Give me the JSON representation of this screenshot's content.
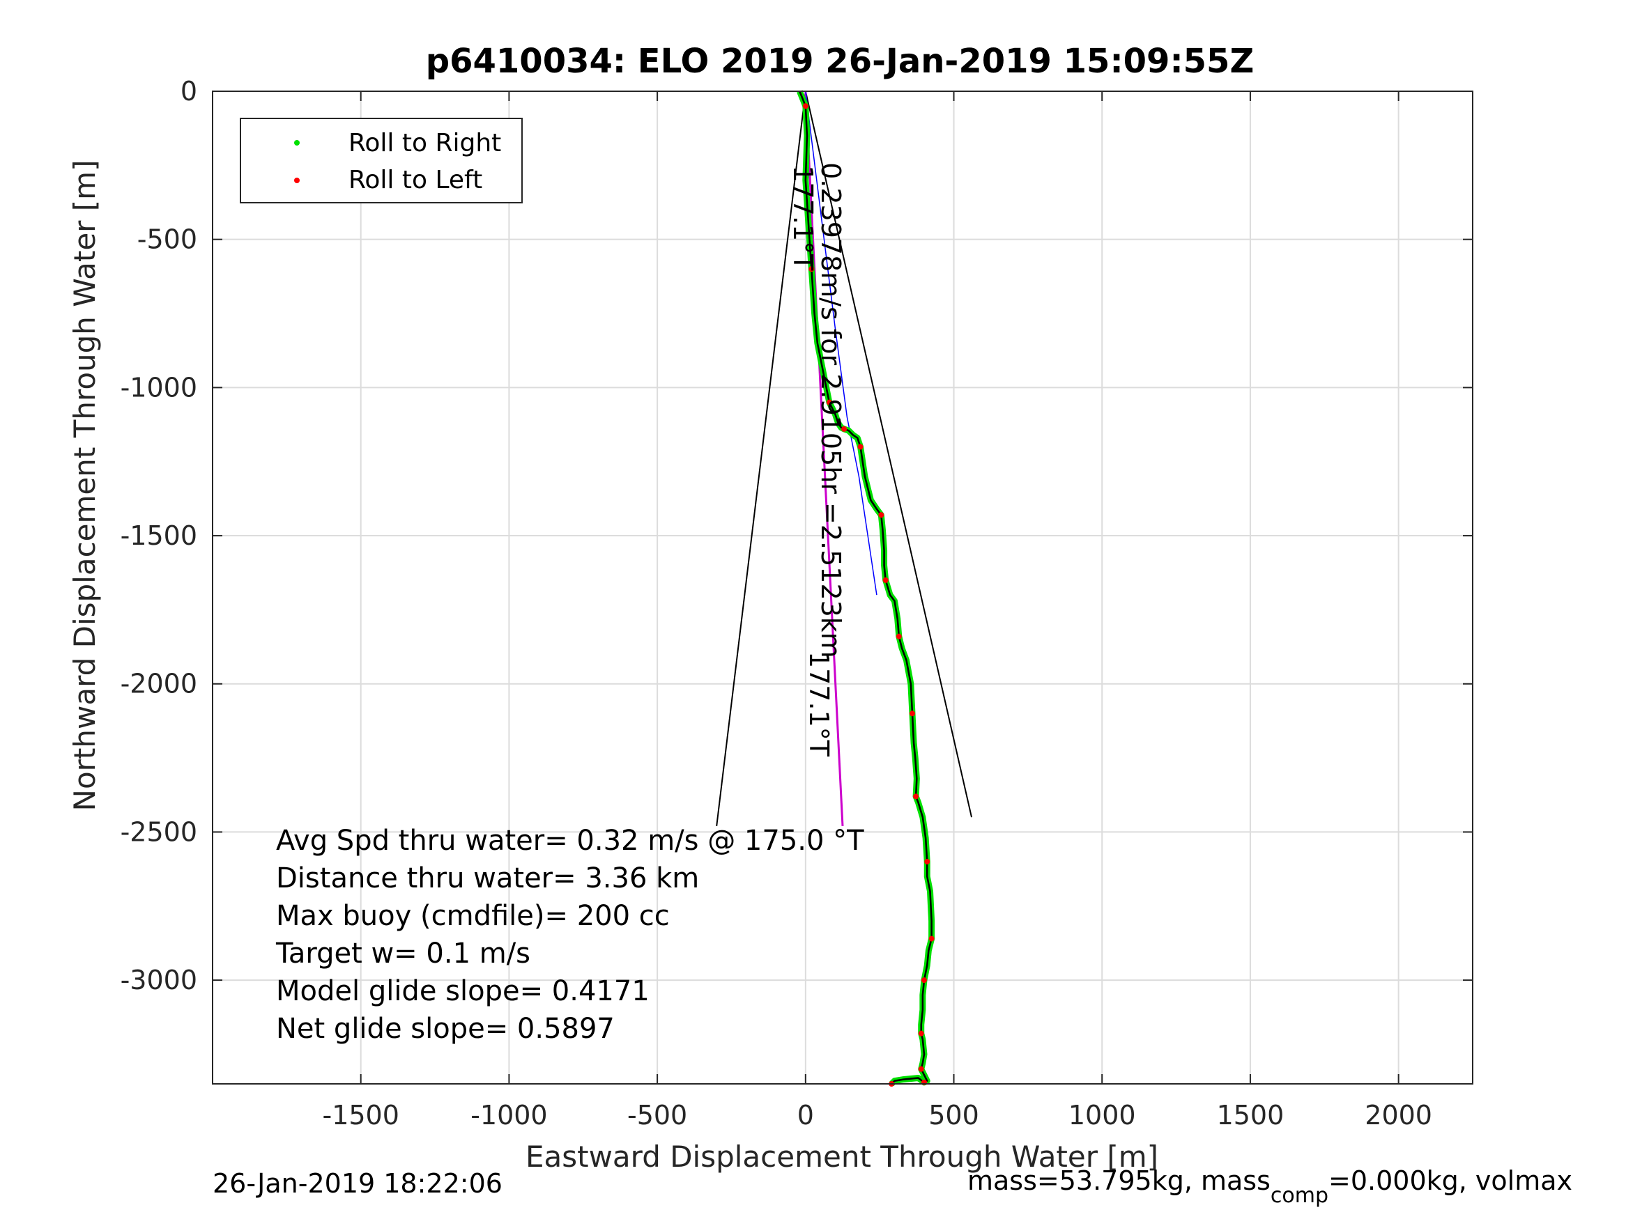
{
  "chart_data": {
    "type": "line",
    "title": "p6410034: ELO 2019 26-Jan-2019 15:09:55Z",
    "xlabel": "Eastward Displacement Through Water [m]",
    "ylabel": "Northward Displacement Through Water [m]",
    "xlim": [
      -2000,
      2250
    ],
    "ylim": [
      -3350,
      0
    ],
    "xticks": [
      -1500,
      -1000,
      -500,
      0,
      500,
      1000,
      1500,
      2000
    ],
    "yticks": [
      0,
      -500,
      -1000,
      -1500,
      -2000,
      -2500,
      -3000
    ],
    "xtick_labels": [
      "-1500",
      "-1000",
      "-500",
      "0",
      "500",
      "1000",
      "1500",
      "2000"
    ],
    "ytick_labels": [
      "0",
      "-500",
      "-1000",
      "-1500",
      "-2000",
      "-2500",
      "-3000"
    ],
    "grid": true,
    "legend": {
      "placement": "top-left",
      "entries": [
        {
          "label": "Roll to Right",
          "color": "#00e000"
        },
        {
          "label": "Roll to Left",
          "color": "#ff0000"
        }
      ]
    },
    "track": {
      "x": [
        -20,
        0,
        5,
        0,
        10,
        20,
        30,
        40,
        60,
        80,
        100,
        110,
        120,
        130,
        145,
        160,
        175,
        185,
        200,
        220,
        240,
        255,
        260,
        265,
        265,
        270,
        285,
        300,
        310,
        315,
        325,
        340,
        355,
        360,
        365,
        370,
        375,
        372,
        380,
        395,
        405,
        410,
        410,
        420,
        425,
        425,
        420,
        415,
        410,
        400,
        395,
        395,
        390,
        390,
        395,
        400,
        395,
        390,
        395,
        400,
        410,
        400,
        380,
        330,
        300,
        290
      ],
      "y": [
        0,
        -50,
        -150,
        -300,
        -450,
        -600,
        -750,
        -850,
        -950,
        -1050,
        -1090,
        -1120,
        -1135,
        -1140,
        -1145,
        -1160,
        -1170,
        -1200,
        -1300,
        -1380,
        -1410,
        -1430,
        -1480,
        -1550,
        -1600,
        -1650,
        -1700,
        -1720,
        -1780,
        -1840,
        -1880,
        -1920,
        -2000,
        -2100,
        -2200,
        -2250,
        -2320,
        -2380,
        -2400,
        -2450,
        -2520,
        -2600,
        -2650,
        -2700,
        -2800,
        -2860,
        -2880,
        -2900,
        -2950,
        -3000,
        -3050,
        -3100,
        -3150,
        -3180,
        -3200,
        -3250,
        -3280,
        -3300,
        -3310,
        -3320,
        -3340,
        -3345,
        -3330,
        -3335,
        -3340,
        -3350
      ],
      "line_color": "#000000",
      "right_color": "#00e000",
      "left_color": "#ff0000"
    },
    "mean_heading_line": {
      "x": [
        0,
        125
      ],
      "y": [
        0,
        -2480
      ],
      "color": "#cc00cc"
    },
    "model_line": {
      "x": [
        0,
        100,
        140,
        180,
        210,
        240
      ],
      "y": [
        0,
        -800,
        -1100,
        -1300,
        -1500,
        -1700
      ],
      "color": "#0000ff"
    },
    "cone_lines": [
      {
        "x": [
          0,
          -300
        ],
        "y": [
          0,
          -2480
        ]
      },
      {
        "x": [
          0,
          560
        ],
        "y": [
          0,
          -2450
        ]
      }
    ],
    "labels": [
      {
        "text": "177.1°T",
        "x": -40,
        "y": -250,
        "angle": 90
      },
      {
        "text": "0.23978m/s for 2.9105hr =2.5123km",
        "x": 55,
        "y": -240,
        "angle": 90
      },
      {
        "text": "177.1°T",
        "x": 15,
        "y": -1890,
        "angle": 90
      }
    ],
    "stats": [
      "Avg Spd thru water=  0.32 m/s @ 175.0 °T",
      "Distance thru water=  3.36 km",
      "Max buoy (cmdfile)= 200 cc",
      "Target w= 0.1 m/s",
      "Model glide slope= 0.4171",
      "Net glide slope= 0.5897"
    ]
  },
  "footer": {
    "timestamp": "26-Jan-2019 18:22:06",
    "mass_text": "mass=53.795kg, mass",
    "mass_sub": "comp",
    "mass_rest": "=0.000kg, volmax"
  }
}
